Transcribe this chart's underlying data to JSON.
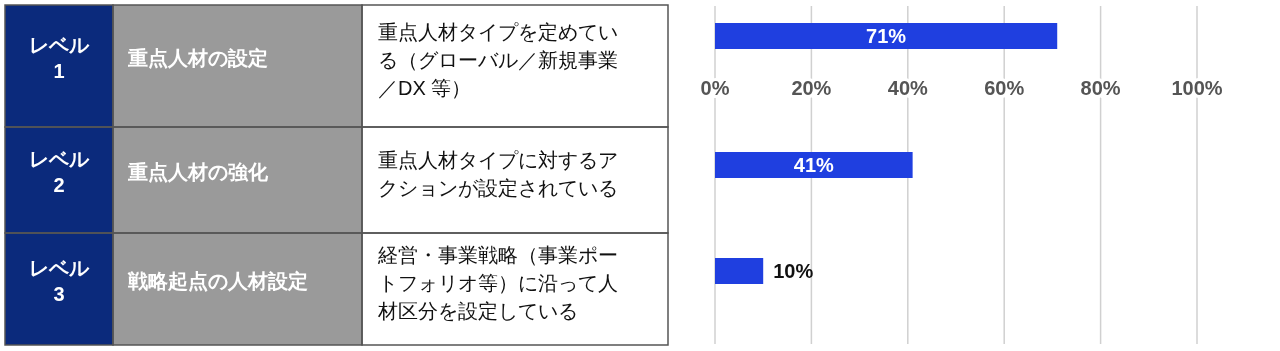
{
  "chart_data": {
    "type": "bar",
    "orientation": "horizontal",
    "categories": [
      "重点人材タイプを定めている（グローバル／新規事業／DX 等）",
      "重点人材タイプに対するアクションが設定されている",
      "経営・事業戦略（事業ポートフォリオ等）に沿って人材区分を設定している"
    ],
    "values": [
      71,
      41,
      10
    ],
    "value_labels": [
      "71%",
      "41%",
      "10%"
    ],
    "color": "#1f3fe0",
    "xlim": [
      0,
      100
    ],
    "xticks": [
      {
        "value": 0,
        "label": "0%"
      },
      {
        "value": 20,
        "label": "20%"
      },
      {
        "value": 40,
        "label": "40%"
      },
      {
        "value": 60,
        "label": "60%"
      },
      {
        "value": 80,
        "label": "80%"
      },
      {
        "value": 100,
        "label": "100%"
      }
    ],
    "grid": "x",
    "annotations": [
      "レベル\n1",
      "重点人材の設定",
      "レベル\n2",
      "重点人材の強化",
      "レベル\n3",
      "戦略起点の人材設定"
    ]
  }
}
